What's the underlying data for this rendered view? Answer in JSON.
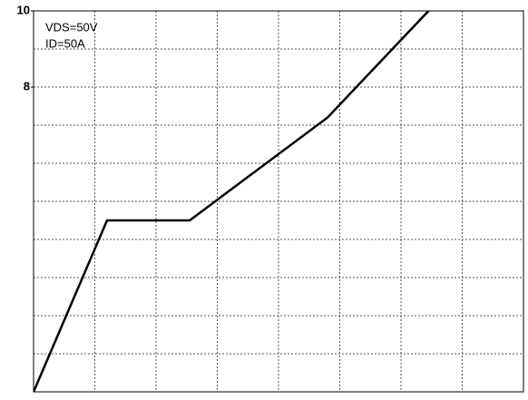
{
  "chart_data": {
    "type": "line",
    "annotations": [
      "VDS=50V",
      "ID=50A"
    ],
    "x": [
      0,
      24,
      51,
      96,
      129
    ],
    "series": [
      {
        "color": "#000000",
        "values": [
          0,
          4.5,
          4.5,
          7.2,
          10
        ]
      }
    ],
    "xlim": [
      0,
      160
    ],
    "xgrid": [
      20,
      40,
      60,
      80,
      100,
      120,
      140
    ],
    "ylim": [
      0,
      10
    ],
    "yticks": [
      8,
      10
    ],
    "ygrid": [
      1,
      2,
      3,
      4,
      5,
      6,
      7,
      8,
      9
    ]
  }
}
